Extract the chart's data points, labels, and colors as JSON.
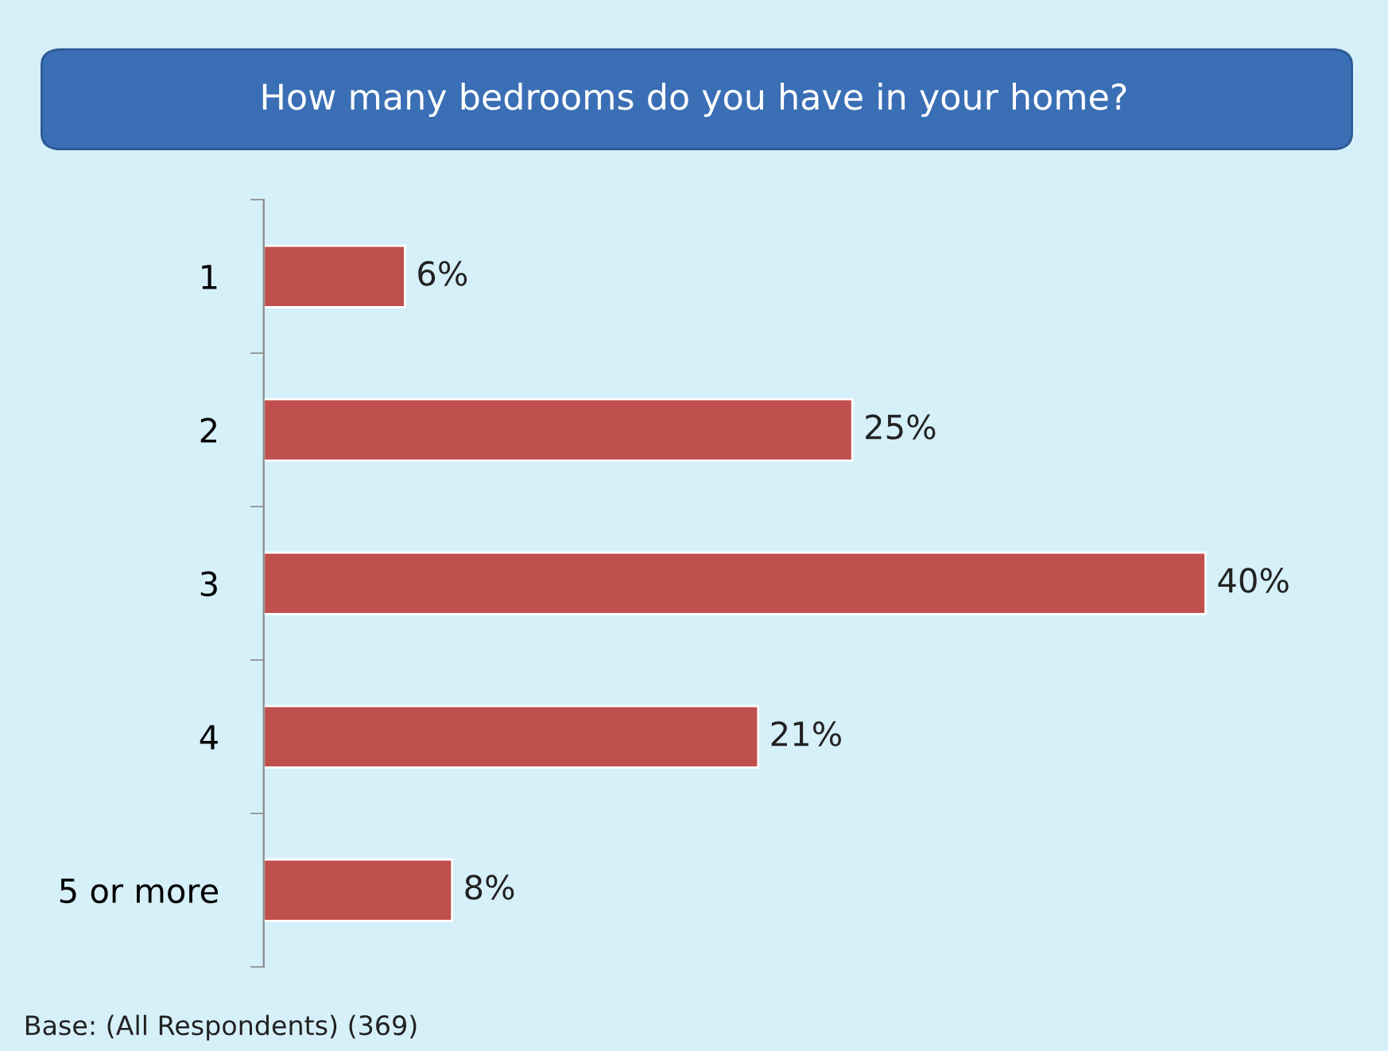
{
  "chart_data": {
    "type": "bar",
    "orientation": "horizontal",
    "title": "How many bedrooms do you have in your home?",
    "categories": [
      "1",
      "2",
      "3",
      "4",
      "5 or more"
    ],
    "values": [
      6,
      25,
      40,
      21,
      8
    ],
    "value_labels": [
      "6%",
      "25%",
      "40%",
      "21%",
      "8%"
    ],
    "color": "#c0504d",
    "grid": false,
    "legend": false,
    "annotations": [
      "Base: (All Respondents) (369)"
    ]
  }
}
